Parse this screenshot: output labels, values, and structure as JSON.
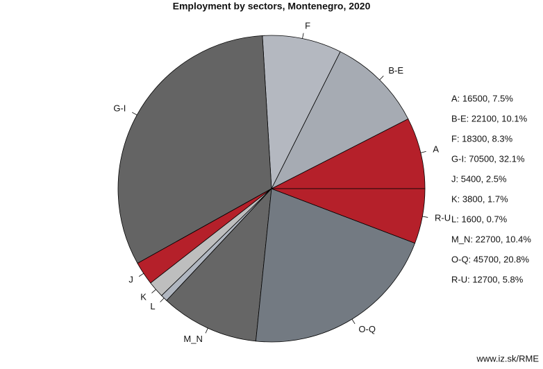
{
  "chart_data": {
    "type": "pie",
    "title": "Employment by sectors, Montenegro, 2020",
    "categories": [
      "A",
      "B-E",
      "F",
      "G-I",
      "J",
      "K",
      "L",
      "M_N",
      "O-Q",
      "R-U"
    ],
    "values": [
      16500,
      22100,
      18300,
      70500,
      5400,
      3800,
      1600,
      22700,
      45700,
      12700
    ],
    "value_labels": [
      "A: 16500, 7.5%",
      "B-E: 22100, 10.1%",
      "F: 18300, 8.3%",
      "G-I: 70500, 32.1%",
      "J: 5400, 2.5%",
      "K: 3800, 1.7%",
      "L: 1600, 0.7%",
      "M_N: 22700, 10.4%",
      "O-Q: 45700, 20.8%",
      "R-U: 12700, 5.8%"
    ],
    "colors": [
      "#b5202a",
      "#a6abb3",
      "#b4b8c0",
      "#646464",
      "#b5202a",
      "#bebebe",
      "#b0b6c0",
      "#666666",
      "#737a82",
      "#b5202a"
    ],
    "source": "www.iz.sk/RME"
  }
}
